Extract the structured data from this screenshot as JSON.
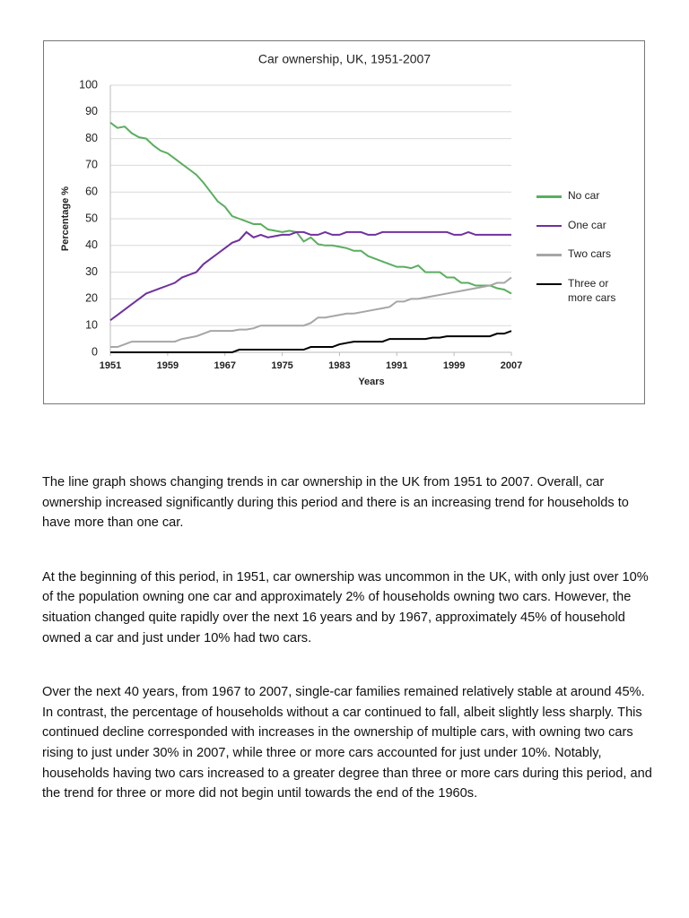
{
  "chart_data": {
    "type": "line",
    "title": "Car ownership, UK, 1951-2007",
    "x_label": "Years",
    "y_label": "Percentage %",
    "x": [
      1951,
      1952,
      1953,
      1954,
      1955,
      1956,
      1957,
      1958,
      1959,
      1960,
      1961,
      1962,
      1963,
      1964,
      1965,
      1966,
      1967,
      1968,
      1969,
      1970,
      1971,
      1972,
      1973,
      1974,
      1975,
      1976,
      1977,
      1978,
      1979,
      1980,
      1981,
      1982,
      1983,
      1984,
      1985,
      1986,
      1987,
      1988,
      1989,
      1990,
      1991,
      1992,
      1993,
      1994,
      1995,
      1996,
      1997,
      1998,
      1999,
      2000,
      2001,
      2002,
      2003,
      2004,
      2005,
      2006,
      2007
    ],
    "xlim": [
      1951,
      2007
    ],
    "xticks": [
      1951,
      1959,
      1967,
      1975,
      1983,
      1991,
      1999,
      2007
    ],
    "ylim": [
      0,
      100
    ],
    "yticks": [
      0,
      10,
      20,
      30,
      40,
      50,
      60,
      70,
      80,
      90,
      100
    ],
    "grid": true,
    "legend": "right",
    "series": [
      {
        "name": "No car",
        "color": "#5aae5e",
        "values": [
          86,
          84,
          84.5,
          82,
          80.5,
          80,
          77.5,
          75.5,
          74.5,
          72.5,
          70.5,
          68.5,
          66.5,
          63.5,
          60,
          56.5,
          54.5,
          51,
          50,
          49,
          48,
          48,
          46,
          45.5,
          45,
          45.5,
          45,
          41.5,
          43,
          40.5,
          40,
          40,
          39.5,
          39,
          38,
          38,
          36,
          35,
          34,
          33,
          32,
          32,
          31.5,
          32.5,
          30,
          30,
          30,
          28,
          28,
          26,
          26,
          25,
          25,
          25,
          24,
          23.5,
          22
        ]
      },
      {
        "name": "One car",
        "color": "#7030a0",
        "values": [
          12,
          14,
          16,
          18,
          20,
          22,
          23,
          24,
          25,
          26,
          28,
          29,
          30,
          33,
          35,
          37,
          39,
          41,
          42,
          45,
          43,
          44,
          43,
          43.5,
          44,
          44,
          45,
          45,
          44,
          44,
          45,
          44,
          44,
          45,
          45,
          45,
          44,
          44,
          45,
          45,
          45,
          45,
          45,
          45,
          45,
          45,
          45,
          45,
          44,
          44,
          45,
          44,
          44,
          44,
          44,
          44,
          44
        ]
      },
      {
        "name": "Two cars",
        "color": "#a6a6a6",
        "values": [
          2,
          2,
          3,
          4,
          4,
          4,
          4,
          4,
          4,
          4,
          5,
          5.5,
          6,
          7,
          8,
          8,
          8,
          8,
          8.5,
          8.5,
          9,
          10,
          10,
          10,
          10,
          10,
          10,
          10,
          11,
          13,
          13,
          13.5,
          14,
          14.5,
          14.5,
          15,
          15.5,
          16,
          16.5,
          17,
          19,
          19,
          20,
          20,
          20.5,
          21,
          21.5,
          22,
          22.5,
          23,
          23.5,
          24,
          24.5,
          25,
          26,
          26,
          28
        ]
      },
      {
        "name": "Three or more cars",
        "color": "#000000",
        "values": [
          0,
          0,
          0,
          0,
          0,
          0,
          0,
          0,
          0,
          0,
          0,
          0,
          0,
          0,
          0,
          0,
          0,
          0,
          1,
          1,
          1,
          1,
          1,
          1,
          1,
          1,
          1,
          1,
          2,
          2,
          2,
          2,
          3,
          3.5,
          4,
          4,
          4,
          4,
          4,
          5,
          5,
          5,
          5,
          5,
          5,
          5.5,
          5.5,
          6,
          6,
          6,
          6,
          6,
          6,
          6,
          7,
          7,
          8
        ]
      }
    ]
  },
  "paragraphs": [
    "The line graph shows changing trends in car ownership in the UK from 1951 to 2007. Overall, car ownership increased significantly during this period and there is an increasing trend for households to have more than one car.",
    "At the beginning of this period, in 1951, car ownership was uncommon in the UK, with only just over 10% of the population owning one car and approximately 2% of households owning two cars. However, the situation changed quite rapidly over the next 16 years and by 1967, approximately 45% of household owned a car and just under 10% had two cars.",
    "Over the next 40 years, from 1967 to 2007, single-car families remained relatively stable at around 45%. In contrast, the percentage of households without a car continued to fall, albeit slightly less sharply. This continued decline corresponded with increases in the ownership of multiple cars, with owning two cars rising to just under 30% in 2007, while three or  more cars accounted for just under 10%. Notably, households having two cars increased to a greater degree than three or more cars during this period, and the trend for three or more did not begin until towards the end of the 1960s."
  ]
}
